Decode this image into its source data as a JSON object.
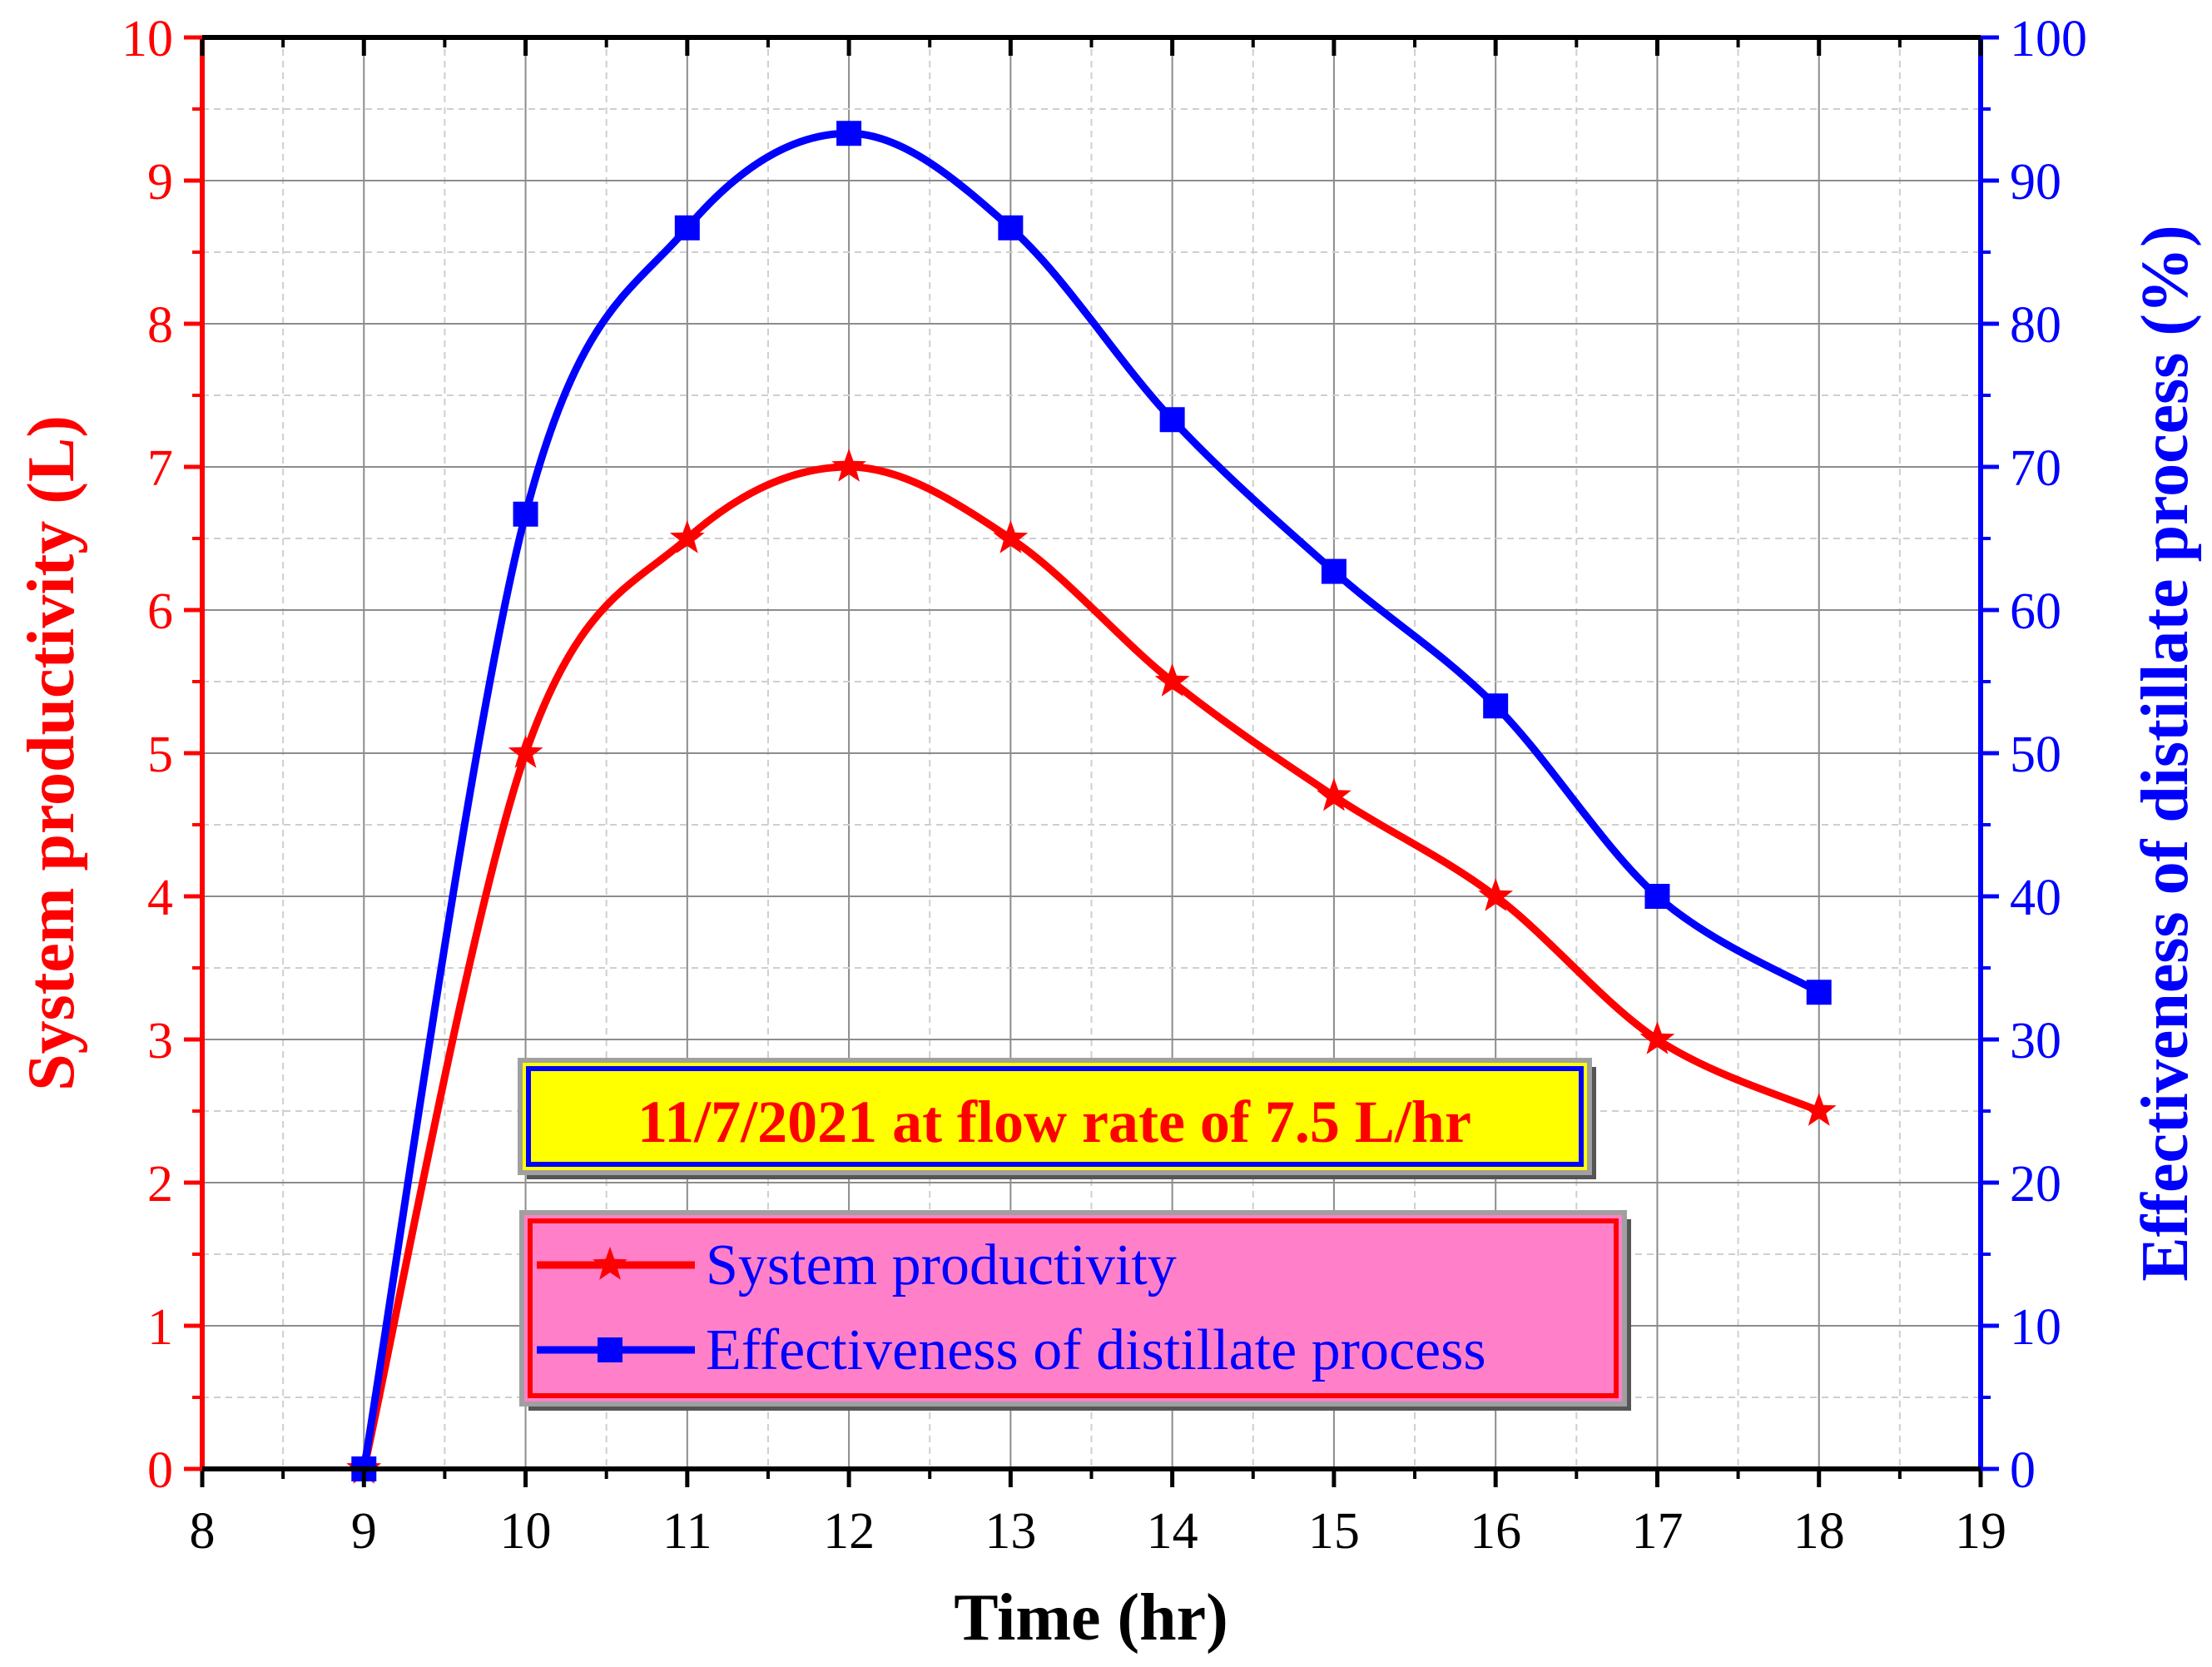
{
  "chart_data": {
    "type": "line",
    "title": "",
    "x": [
      9,
      10,
      11,
      12,
      13,
      14,
      15,
      16,
      17,
      18
    ],
    "xlabel": "Time (hr)",
    "xlim": [
      8,
      19
    ],
    "x_ticks": [
      "8",
      "9",
      "10",
      "11",
      "12",
      "13",
      "14",
      "15",
      "16",
      "17",
      "18",
      "19"
    ],
    "ylabel_left": "System productivity (L)",
    "ylim_left": [
      0,
      10
    ],
    "y_ticks_left": [
      "0",
      "1",
      "2",
      "3",
      "4",
      "5",
      "6",
      "7",
      "8",
      "9",
      "10"
    ],
    "ylabel_right": "Effectiveness of distillate process (%)",
    "ylim_right": [
      0,
      100
    ],
    "y_ticks_right": [
      "0",
      "10",
      "20",
      "30",
      "40",
      "50",
      "60",
      "70",
      "80",
      "90",
      "100"
    ],
    "grid": true,
    "legend_position": "bottom-center",
    "annotation": "11/7/2021 at flow rate of 7.5 L/hr",
    "series": [
      {
        "name": "System productivity",
        "axis": "left",
        "color": "#ff0000",
        "marker": "star",
        "values": [
          0,
          5.0,
          6.5,
          7.0,
          6.5,
          5.5,
          4.7,
          4.0,
          3.0,
          2.5
        ]
      },
      {
        "name": "Effectiveness of distillate process",
        "axis": "right",
        "color": "#0000ff",
        "marker": "square",
        "values": [
          0,
          66.7,
          86.7,
          93.3,
          86.7,
          73.3,
          62.7,
          53.3,
          40.0,
          33.3
        ]
      }
    ]
  }
}
